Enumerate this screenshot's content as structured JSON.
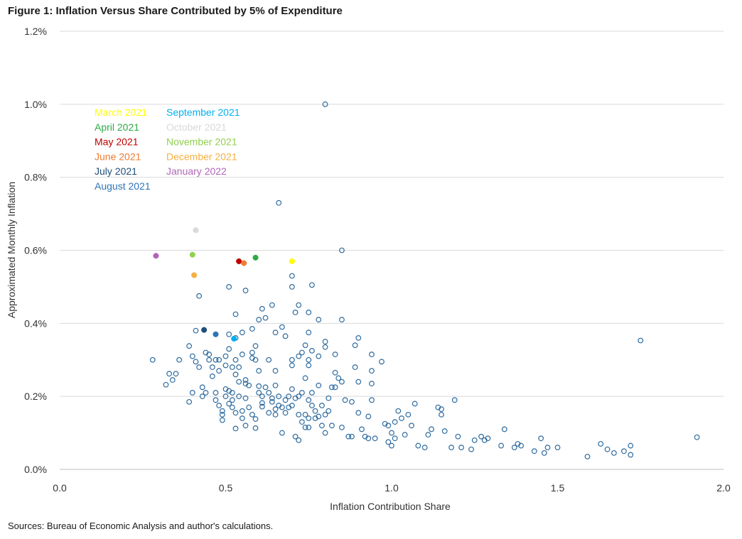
{
  "figure": {
    "title": "Figure 1: Inflation Versus Share Contributed by 5% of Expenditure",
    "source": "Sources: Bureau of Economic Analysis and author's calculations."
  },
  "chart_data": {
    "type": "scatter",
    "xlabel": "Inflation Contribution Share",
    "ylabel": "Approximated Monthly Inflation",
    "xlim": [
      0,
      2
    ],
    "ylim": [
      0,
      1.2
    ],
    "x_ticks": [
      "0.0",
      "0.5",
      "1.0",
      "1.5",
      "2.0"
    ],
    "y_ticks": [
      "0.0%",
      "0.2%",
      "0.4%",
      "0.6%",
      "0.8%",
      "1.0%",
      "1.2%"
    ],
    "grid": "horizontal",
    "legend_position": "top-left",
    "base_marker_color": "#2e6b9f",
    "series": [
      {
        "name": "March 2021",
        "color": "#ffff00",
        "points": [
          [
            0.7,
            0.57
          ]
        ]
      },
      {
        "name": "April 2021",
        "color": "#2eaa47",
        "points": [
          [
            0.59,
            0.58
          ]
        ]
      },
      {
        "name": "May 2021",
        "color": "#c00000",
        "points": [
          [
            0.54,
            0.57
          ]
        ]
      },
      {
        "name": "June 2021",
        "color": "#ed7d31",
        "points": [
          [
            0.555,
            0.565
          ]
        ]
      },
      {
        "name": "July 2021",
        "color": "#1f4e79",
        "points": [
          [
            0.435,
            0.382
          ]
        ]
      },
      {
        "name": "August 2021",
        "color": "#2e75b6",
        "points": [
          [
            0.47,
            0.37
          ]
        ]
      },
      {
        "name": "September 2021",
        "color": "#00b0f0",
        "points": [
          [
            0.525,
            0.358
          ]
        ]
      },
      {
        "name": "October 2021",
        "color": "#d9d9d9",
        "points": [
          [
            0.41,
            0.655
          ]
        ]
      },
      {
        "name": "November 2021",
        "color": "#92d050",
        "points": [
          [
            0.4,
            0.588
          ]
        ]
      },
      {
        "name": "December 2021",
        "color": "#f4b042",
        "points": [
          [
            0.405,
            0.532
          ]
        ]
      },
      {
        "name": "January 2022",
        "color": "#b066b8",
        "points": [
          [
            0.29,
            0.585
          ]
        ]
      }
    ],
    "background_points": [
      [
        0.8,
        1.0
      ],
      [
        0.66,
        0.73
      ],
      [
        0.85,
        0.6
      ],
      [
        1.75,
        0.353
      ],
      [
        1.92,
        0.088
      ],
      [
        0.51,
        0.5
      ],
      [
        0.56,
        0.49
      ],
      [
        0.7,
        0.53
      ],
      [
        0.7,
        0.5
      ],
      [
        0.76,
        0.505
      ],
      [
        0.42,
        0.475
      ],
      [
        0.53,
        0.425
      ],
      [
        0.61,
        0.44
      ],
      [
        0.64,
        0.45
      ],
      [
        0.72,
        0.45
      ],
      [
        0.75,
        0.43
      ],
      [
        0.6,
        0.41
      ],
      [
        0.62,
        0.415
      ],
      [
        0.71,
        0.43
      ],
      [
        0.78,
        0.41
      ],
      [
        0.85,
        0.41
      ],
      [
        0.41,
        0.38
      ],
      [
        0.51,
        0.37
      ],
      [
        0.55,
        0.375
      ],
      [
        0.67,
        0.39
      ],
      [
        0.58,
        0.385
      ],
      [
        0.65,
        0.375
      ],
      [
        0.68,
        0.365
      ],
      [
        0.75,
        0.375
      ],
      [
        0.28,
        0.3
      ],
      [
        0.32,
        0.232
      ],
      [
        0.33,
        0.262
      ],
      [
        0.34,
        0.245
      ],
      [
        0.35,
        0.262
      ],
      [
        0.36,
        0.3
      ],
      [
        0.39,
        0.185
      ],
      [
        0.39,
        0.338
      ],
      [
        0.4,
        0.31
      ],
      [
        0.4,
        0.21
      ],
      [
        0.41,
        0.295
      ],
      [
        0.42,
        0.28
      ],
      [
        0.43,
        0.225
      ],
      [
        0.43,
        0.2
      ],
      [
        0.44,
        0.32
      ],
      [
        0.44,
        0.21
      ],
      [
        0.45,
        0.315
      ],
      [
        0.45,
        0.3
      ],
      [
        0.46,
        0.28
      ],
      [
        0.46,
        0.255
      ],
      [
        0.47,
        0.3
      ],
      [
        0.47,
        0.21
      ],
      [
        0.47,
        0.19
      ],
      [
        0.48,
        0.27
      ],
      [
        0.48,
        0.3
      ],
      [
        0.48,
        0.175
      ],
      [
        0.49,
        0.16
      ],
      [
        0.49,
        0.15
      ],
      [
        0.49,
        0.135
      ],
      [
        0.5,
        0.31
      ],
      [
        0.5,
        0.285
      ],
      [
        0.5,
        0.22
      ],
      [
        0.5,
        0.2
      ],
      [
        0.51,
        0.33
      ],
      [
        0.51,
        0.215
      ],
      [
        0.51,
        0.18
      ],
      [
        0.52,
        0.28
      ],
      [
        0.52,
        0.21
      ],
      [
        0.52,
        0.19
      ],
      [
        0.52,
        0.17
      ],
      [
        0.53,
        0.36
      ],
      [
        0.53,
        0.3
      ],
      [
        0.53,
        0.26
      ],
      [
        0.53,
        0.155
      ],
      [
        0.53,
        0.112
      ],
      [
        0.54,
        0.28
      ],
      [
        0.54,
        0.24
      ],
      [
        0.54,
        0.2
      ],
      [
        0.55,
        0.315
      ],
      [
        0.55,
        0.16
      ],
      [
        0.55,
        0.14
      ],
      [
        0.56,
        0.245
      ],
      [
        0.56,
        0.235
      ],
      [
        0.56,
        0.195
      ],
      [
        0.56,
        0.12
      ],
      [
        0.57,
        0.23
      ],
      [
        0.57,
        0.17
      ],
      [
        0.58,
        0.32
      ],
      [
        0.58,
        0.305
      ],
      [
        0.58,
        0.15
      ],
      [
        0.59,
        0.338
      ],
      [
        0.59,
        0.3
      ],
      [
        0.59,
        0.138
      ],
      [
        0.59,
        0.113
      ],
      [
        0.6,
        0.228
      ],
      [
        0.6,
        0.27
      ],
      [
        0.6,
        0.21
      ],
      [
        0.61,
        0.2
      ],
      [
        0.61,
        0.172
      ],
      [
        0.61,
        0.182
      ],
      [
        0.62,
        0.225
      ],
      [
        0.63,
        0.3
      ],
      [
        0.63,
        0.21
      ],
      [
        0.63,
        0.155
      ],
      [
        0.64,
        0.195
      ],
      [
        0.64,
        0.185
      ],
      [
        0.65,
        0.23
      ],
      [
        0.65,
        0.27
      ],
      [
        0.65,
        0.15
      ],
      [
        0.65,
        0.165
      ],
      [
        0.66,
        0.2
      ],
      [
        0.66,
        0.175
      ],
      [
        0.67,
        0.17
      ],
      [
        0.67,
        0.1
      ],
      [
        0.68,
        0.19
      ],
      [
        0.68,
        0.155
      ],
      [
        0.69,
        0.2
      ],
      [
        0.69,
        0.17
      ],
      [
        0.7,
        0.3
      ],
      [
        0.7,
        0.285
      ],
      [
        0.7,
        0.22
      ],
      [
        0.7,
        0.175
      ],
      [
        0.71,
        0.195
      ],
      [
        0.71,
        0.09
      ],
      [
        0.72,
        0.31
      ],
      [
        0.72,
        0.2
      ],
      [
        0.72,
        0.15
      ],
      [
        0.72,
        0.08
      ],
      [
        0.73,
        0.32
      ],
      [
        0.73,
        0.21
      ],
      [
        0.73,
        0.13
      ],
      [
        0.74,
        0.34
      ],
      [
        0.74,
        0.25
      ],
      [
        0.74,
        0.15
      ],
      [
        0.74,
        0.115
      ],
      [
        0.75,
        0.3
      ],
      [
        0.75,
        0.285
      ],
      [
        0.75,
        0.19
      ],
      [
        0.75,
        0.14
      ],
      [
        0.75,
        0.115
      ],
      [
        0.76,
        0.325
      ],
      [
        0.76,
        0.21
      ],
      [
        0.76,
        0.175
      ],
      [
        0.77,
        0.16
      ],
      [
        0.77,
        0.14
      ],
      [
        0.78,
        0.31
      ],
      [
        0.78,
        0.23
      ],
      [
        0.78,
        0.145
      ],
      [
        0.79,
        0.175
      ],
      [
        0.79,
        0.12
      ],
      [
        0.8,
        0.35
      ],
      [
        0.8,
        0.335
      ],
      [
        0.8,
        0.15
      ],
      [
        0.8,
        0.1
      ],
      [
        0.81,
        0.195
      ],
      [
        0.81,
        0.16
      ],
      [
        0.82,
        0.225
      ],
      [
        0.82,
        0.12
      ],
      [
        0.83,
        0.315
      ],
      [
        0.83,
        0.265
      ],
      [
        0.83,
        0.225
      ],
      [
        0.84,
        0.25
      ],
      [
        0.85,
        0.24
      ],
      [
        0.85,
        0.115
      ],
      [
        0.86,
        0.19
      ],
      [
        0.87,
        0.09
      ],
      [
        0.88,
        0.185
      ],
      [
        0.88,
        0.09
      ],
      [
        0.89,
        0.34
      ],
      [
        0.89,
        0.28
      ],
      [
        0.9,
        0.36
      ],
      [
        0.9,
        0.24
      ],
      [
        0.9,
        0.155
      ],
      [
        0.91,
        0.11
      ],
      [
        0.92,
        0.09
      ],
      [
        0.93,
        0.145
      ],
      [
        0.93,
        0.085
      ],
      [
        0.94,
        0.315
      ],
      [
        0.94,
        0.27
      ],
      [
        0.94,
        0.235
      ],
      [
        0.94,
        0.19
      ],
      [
        0.95,
        0.085
      ],
      [
        0.97,
        0.295
      ],
      [
        0.98,
        0.125
      ],
      [
        0.99,
        0.075
      ],
      [
        0.99,
        0.12
      ],
      [
        1.0,
        0.1
      ],
      [
        1.0,
        0.065
      ],
      [
        1.01,
        0.085
      ],
      [
        1.01,
        0.13
      ],
      [
        1.02,
        0.16
      ],
      [
        1.03,
        0.14
      ],
      [
        1.04,
        0.095
      ],
      [
        1.05,
        0.15
      ],
      [
        1.06,
        0.12
      ],
      [
        1.07,
        0.18
      ],
      [
        1.08,
        0.065
      ],
      [
        1.1,
        0.06
      ],
      [
        1.11,
        0.095
      ],
      [
        1.12,
        0.11
      ],
      [
        1.14,
        0.17
      ],
      [
        1.15,
        0.165
      ],
      [
        1.15,
        0.15
      ],
      [
        1.16,
        0.105
      ],
      [
        1.18,
        0.06
      ],
      [
        1.19,
        0.19
      ],
      [
        1.2,
        0.09
      ],
      [
        1.21,
        0.06
      ],
      [
        1.24,
        0.055
      ],
      [
        1.25,
        0.08
      ],
      [
        1.27,
        0.09
      ],
      [
        1.28,
        0.08
      ],
      [
        1.29,
        0.085
      ],
      [
        1.33,
        0.065
      ],
      [
        1.34,
        0.11
      ],
      [
        1.37,
        0.06
      ],
      [
        1.38,
        0.07
      ],
      [
        1.39,
        0.065
      ],
      [
        1.43,
        0.05
      ],
      [
        1.45,
        0.085
      ],
      [
        1.46,
        0.045
      ],
      [
        1.47,
        0.06
      ],
      [
        1.5,
        0.06
      ],
      [
        1.59,
        0.035
      ],
      [
        1.63,
        0.07
      ],
      [
        1.65,
        0.055
      ],
      [
        1.67,
        0.045
      ],
      [
        1.7,
        0.05
      ],
      [
        1.72,
        0.065
      ],
      [
        1.72,
        0.04
      ]
    ]
  }
}
